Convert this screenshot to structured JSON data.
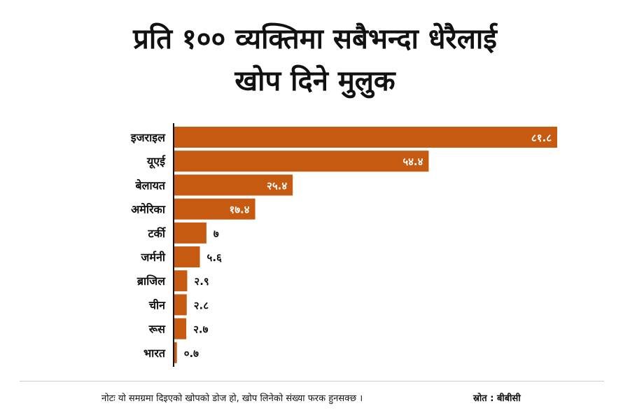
{
  "title_line1": "प्रति १०० व्यक्तिमा सबैभन्दा धेरैलाई",
  "title_line2": "खोप दिने मुलुक",
  "note": "नोटः यो समग्रमा दिइएको खोपको डोज हो, खोप लिनेको संख्या फरक हुनसक्छ ।",
  "source": "स्रोत : बीबीसी",
  "colors": {
    "bar": "#c65a10",
    "axis": "#111111",
    "value_inside": "#ffffff",
    "value_outside": "#111111"
  },
  "chart_data": {
    "type": "bar",
    "orientation": "horizontal",
    "categories": [
      "इजराइल",
      "यूएई",
      "बेलायत",
      "अमेरिका",
      "टर्की",
      "जर्मनी",
      "ब्राजिल",
      "चीन",
      "रूस",
      "भारत"
    ],
    "values": [
      81.8,
      54.4,
      25.4,
      17.4,
      7,
      5.6,
      2.9,
      2.8,
      2.7,
      0.7
    ],
    "value_labels": [
      "८१.८",
      "५४.४",
      "२५.४",
      "१७.४",
      "७",
      "५.६",
      "२.९",
      "२.८",
      "२.७",
      "०.७"
    ],
    "xlim": [
      0,
      81.8
    ],
    "grid": false,
    "legend": "none"
  }
}
